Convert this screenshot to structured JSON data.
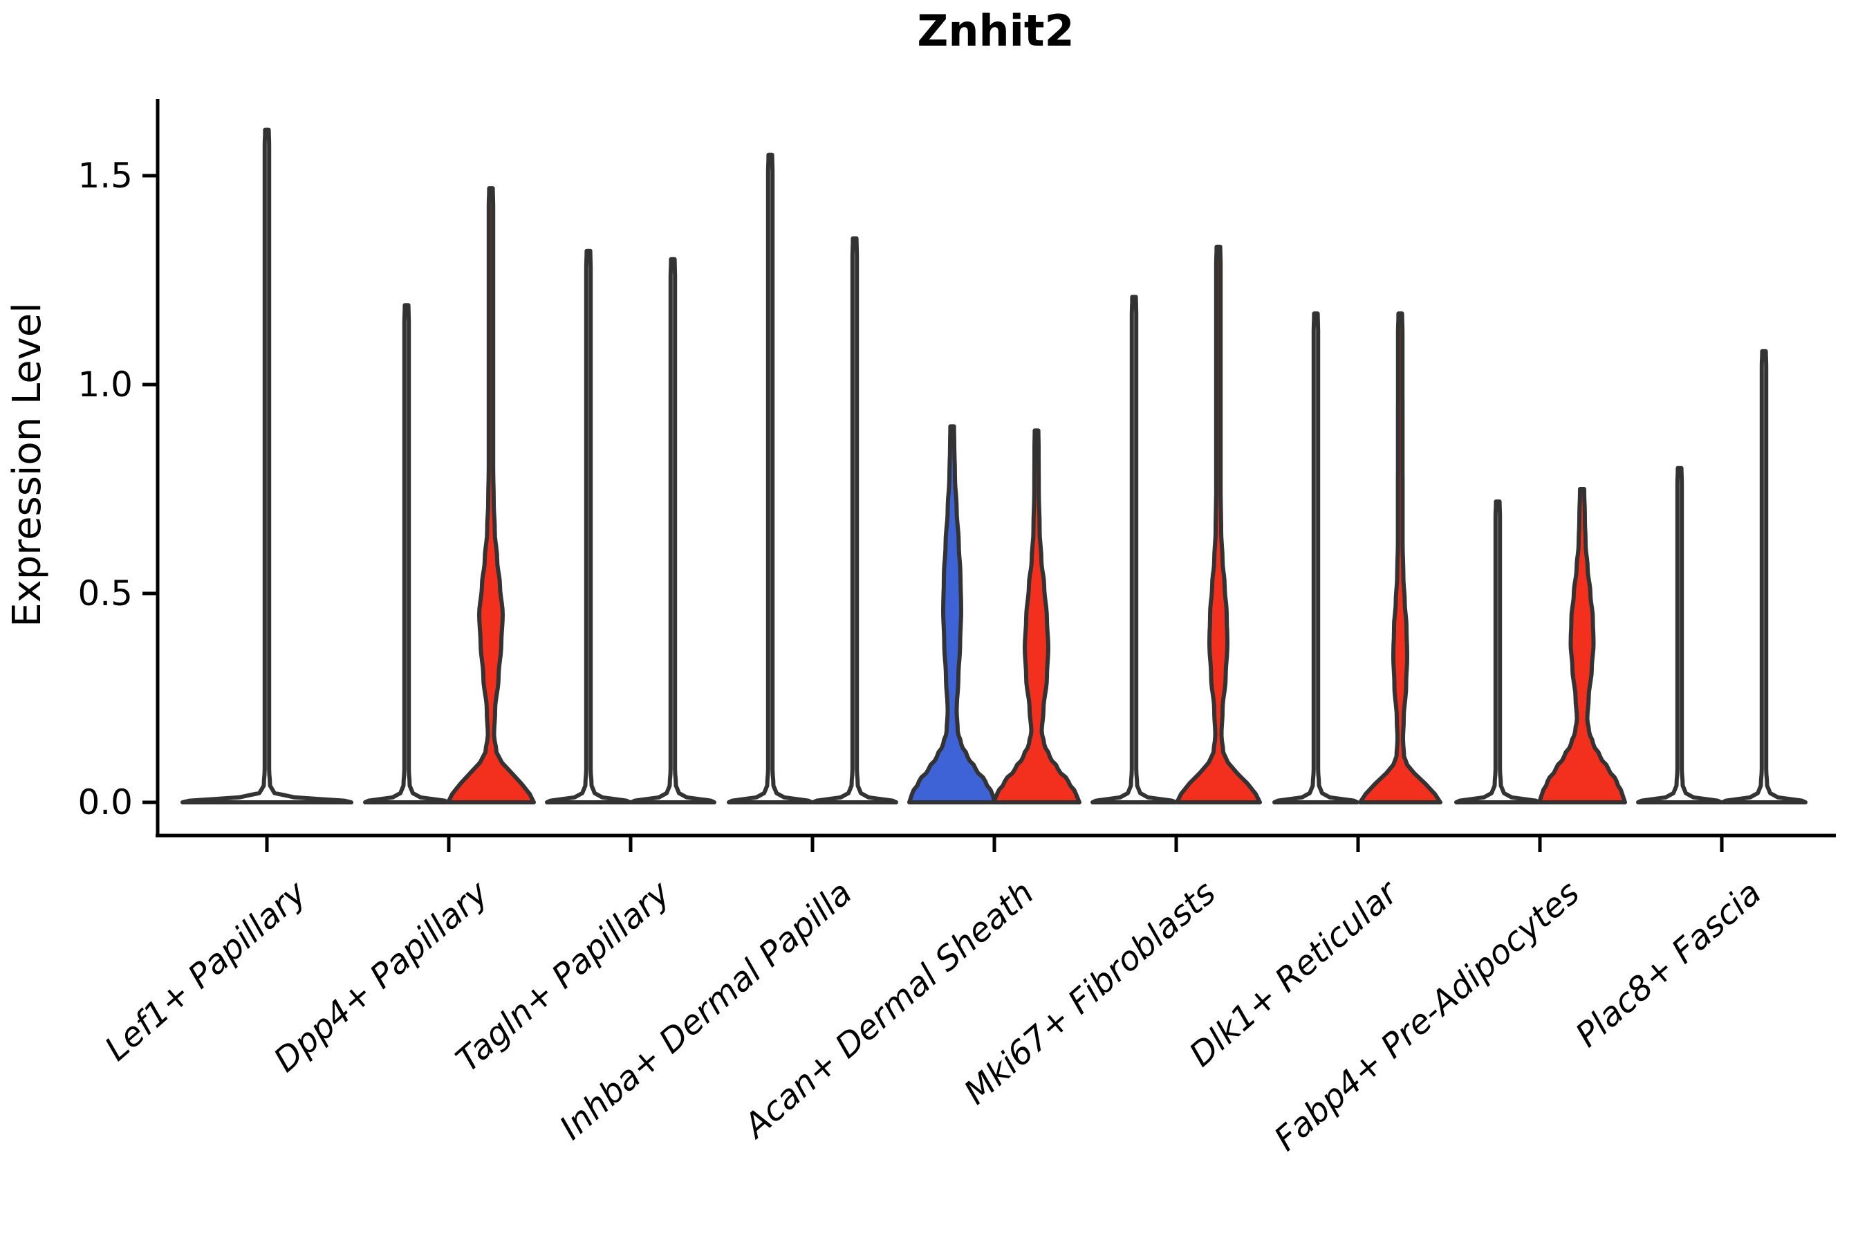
{
  "title": "Znhit2",
  "y_axis": {
    "label": "Expression Level",
    "tick_labels": [
      "0.0",
      "0.5",
      "1.0",
      "1.5"
    ],
    "tick_values": [
      0.0,
      0.5,
      1.0,
      1.5
    ]
  },
  "colors": {
    "red": "#F3301E",
    "blue": "#3E63D6",
    "white": "#FFFFFF",
    "outline": "#333333",
    "axis": "#000000",
    "background": "#FFFFFF"
  },
  "chart_data": {
    "type": "violin",
    "title": "Znhit2",
    "ylabel": "Expression Level",
    "ylim": [
      -0.09,
      1.68
    ],
    "grid": false,
    "legend": "none",
    "categories": [
      "Lef1+ Papillary",
      "Dpp4+ Papillary",
      "Tagln+ Papillary",
      "Inhba+ Dermal Papilla",
      "Acan+ Dermal Sheath",
      "Mki67+ Fibroblasts",
      "Dlk1+ Reticular",
      "Fabp4+ Pre-Adipocytes",
      "Plac8+ Fascia"
    ],
    "violins": [
      {
        "category_index": 0,
        "slot": "center",
        "fill": "white",
        "max_expression": 1.61,
        "profile": [
          [
            0,
            122
          ],
          [
            0.004,
            112
          ],
          [
            0.012,
            40
          ],
          [
            0.022,
            11
          ],
          [
            0.04,
            4.5
          ],
          [
            0.08,
            3.2
          ],
          [
            1.57,
            3.2
          ],
          [
            1.61,
            2.6
          ]
        ]
      },
      {
        "category_index": 1,
        "slot": "left",
        "fill": "white",
        "max_expression": 1.19,
        "profile": [
          [
            0,
            60
          ],
          [
            0.004,
            55
          ],
          [
            0.012,
            20
          ],
          [
            0.022,
            9
          ],
          [
            0.04,
            4.5
          ],
          [
            0.08,
            3.2
          ],
          [
            1.15,
            3.2
          ],
          [
            1.19,
            2.6
          ]
        ]
      },
      {
        "category_index": 1,
        "slot": "right",
        "fill": "red",
        "max_expression": 1.47,
        "profile": [
          [
            0,
            62
          ],
          [
            0.02,
            56
          ],
          [
            0.045,
            44
          ],
          [
            0.07,
            30
          ],
          [
            0.095,
            16
          ],
          [
            0.12,
            8
          ],
          [
            0.16,
            4.5
          ],
          [
            0.22,
            6
          ],
          [
            0.3,
            11
          ],
          [
            0.38,
            15
          ],
          [
            0.45,
            17
          ],
          [
            0.52,
            13
          ],
          [
            0.58,
            9
          ],
          [
            0.65,
            5.5
          ],
          [
            0.72,
            4
          ],
          [
            0.8,
            3.2
          ],
          [
            1.43,
            3.2
          ],
          [
            1.47,
            2.6
          ]
        ]
      },
      {
        "category_index": 2,
        "slot": "left",
        "fill": "white",
        "max_expression": 1.32,
        "profile": [
          [
            0,
            60
          ],
          [
            0.004,
            55
          ],
          [
            0.012,
            20
          ],
          [
            0.022,
            9
          ],
          [
            0.04,
            4.5
          ],
          [
            0.08,
            3.2
          ],
          [
            1.28,
            3.2
          ],
          [
            1.32,
            2.6
          ]
        ]
      },
      {
        "category_index": 2,
        "slot": "right",
        "fill": "white",
        "max_expression": 1.3,
        "profile": [
          [
            0,
            60
          ],
          [
            0.004,
            55
          ],
          [
            0.012,
            20
          ],
          [
            0.022,
            9
          ],
          [
            0.04,
            4.5
          ],
          [
            0.08,
            3.2
          ],
          [
            1.26,
            3.2
          ],
          [
            1.3,
            2.6
          ]
        ]
      },
      {
        "category_index": 3,
        "slot": "left",
        "fill": "white",
        "max_expression": 1.55,
        "profile": [
          [
            0,
            60
          ],
          [
            0.004,
            55
          ],
          [
            0.012,
            20
          ],
          [
            0.022,
            9
          ],
          [
            0.04,
            4.5
          ],
          [
            0.08,
            3.2
          ],
          [
            1.51,
            3.2
          ],
          [
            1.55,
            2.6
          ]
        ]
      },
      {
        "category_index": 3,
        "slot": "right",
        "fill": "white",
        "max_expression": 1.35,
        "profile": [
          [
            0,
            60
          ],
          [
            0.004,
            55
          ],
          [
            0.012,
            20
          ],
          [
            0.022,
            9
          ],
          [
            0.04,
            4.5
          ],
          [
            0.08,
            3.2
          ],
          [
            1.31,
            3.2
          ],
          [
            1.35,
            2.6
          ]
        ]
      },
      {
        "category_index": 4,
        "slot": "left",
        "fill": "blue",
        "max_expression": 0.9,
        "profile": [
          [
            0,
            62
          ],
          [
            0.02,
            58
          ],
          [
            0.05,
            48
          ],
          [
            0.08,
            34
          ],
          [
            0.11,
            22
          ],
          [
            0.14,
            13
          ],
          [
            0.17,
            8
          ],
          [
            0.22,
            6.5
          ],
          [
            0.3,
            9
          ],
          [
            0.38,
            11.5
          ],
          [
            0.46,
            13
          ],
          [
            0.54,
            12
          ],
          [
            0.62,
            9.5
          ],
          [
            0.7,
            6.5
          ],
          [
            0.78,
            4
          ],
          [
            0.86,
            3
          ],
          [
            0.9,
            2.6
          ]
        ]
      },
      {
        "category_index": 4,
        "slot": "right",
        "fill": "red",
        "max_expression": 0.89,
        "profile": [
          [
            0,
            62
          ],
          [
            0.02,
            57
          ],
          [
            0.05,
            46
          ],
          [
            0.08,
            31
          ],
          [
            0.11,
            19
          ],
          [
            0.14,
            11
          ],
          [
            0.17,
            7.5
          ],
          [
            0.22,
            10
          ],
          [
            0.3,
            15
          ],
          [
            0.37,
            17
          ],
          [
            0.44,
            15
          ],
          [
            0.52,
            11
          ],
          [
            0.58,
            7
          ],
          [
            0.65,
            4.5
          ],
          [
            0.75,
            3.2
          ],
          [
            0.85,
            3
          ],
          [
            0.89,
            2.6
          ]
        ]
      },
      {
        "category_index": 5,
        "slot": "left",
        "fill": "white",
        "max_expression": 1.21,
        "profile": [
          [
            0,
            60
          ],
          [
            0.004,
            55
          ],
          [
            0.012,
            20
          ],
          [
            0.022,
            9
          ],
          [
            0.04,
            4.5
          ],
          [
            0.08,
            3.2
          ],
          [
            1.17,
            3.2
          ],
          [
            1.21,
            2.6
          ]
        ]
      },
      {
        "category_index": 5,
        "slot": "right",
        "fill": "red",
        "max_expression": 1.33,
        "profile": [
          [
            0,
            60
          ],
          [
            0.02,
            54
          ],
          [
            0.045,
            42
          ],
          [
            0.07,
            27
          ],
          [
            0.095,
            14
          ],
          [
            0.12,
            7
          ],
          [
            0.16,
            4.5
          ],
          [
            0.22,
            6
          ],
          [
            0.3,
            10.5
          ],
          [
            0.38,
            13
          ],
          [
            0.45,
            12
          ],
          [
            0.52,
            9
          ],
          [
            0.58,
            6
          ],
          [
            0.65,
            4
          ],
          [
            0.75,
            3.2
          ],
          [
            1.29,
            3.2
          ],
          [
            1.33,
            2.6
          ]
        ]
      },
      {
        "category_index": 6,
        "slot": "left",
        "fill": "white",
        "max_expression": 1.17,
        "profile": [
          [
            0,
            60
          ],
          [
            0.004,
            55
          ],
          [
            0.012,
            20
          ],
          [
            0.022,
            9
          ],
          [
            0.04,
            4.5
          ],
          [
            0.08,
            3.2
          ],
          [
            1.13,
            3.2
          ],
          [
            1.17,
            2.6
          ]
        ]
      },
      {
        "category_index": 6,
        "slot": "right",
        "fill": "red",
        "max_expression": 1.17,
        "profile": [
          [
            0,
            58
          ],
          [
            0.02,
            50
          ],
          [
            0.045,
            36
          ],
          [
            0.07,
            20
          ],
          [
            0.09,
            10
          ],
          [
            0.11,
            5.5
          ],
          [
            0.15,
            4
          ],
          [
            0.2,
            5
          ],
          [
            0.28,
            8.5
          ],
          [
            0.35,
            10
          ],
          [
            0.42,
            9
          ],
          [
            0.48,
            6.5
          ],
          [
            0.54,
            4.5
          ],
          [
            0.62,
            3.4
          ],
          [
            1.13,
            3.2
          ],
          [
            1.17,
            2.6
          ]
        ]
      },
      {
        "category_index": 7,
        "slot": "left",
        "fill": "white",
        "max_expression": 0.72,
        "profile": [
          [
            0,
            60
          ],
          [
            0.004,
            55
          ],
          [
            0.012,
            20
          ],
          [
            0.022,
            9
          ],
          [
            0.04,
            4.5
          ],
          [
            0.08,
            3.2
          ],
          [
            0.68,
            3.2
          ],
          [
            0.72,
            2.6
          ]
        ]
      },
      {
        "category_index": 7,
        "slot": "right",
        "fill": "red",
        "max_expression": 0.75,
        "profile": [
          [
            0,
            62
          ],
          [
            0.02,
            58
          ],
          [
            0.05,
            50
          ],
          [
            0.08,
            38
          ],
          [
            0.11,
            26
          ],
          [
            0.14,
            16
          ],
          [
            0.17,
            10
          ],
          [
            0.2,
            7.5
          ],
          [
            0.25,
            9.5
          ],
          [
            0.32,
            14
          ],
          [
            0.38,
            16.5
          ],
          [
            0.44,
            15.5
          ],
          [
            0.5,
            12
          ],
          [
            0.56,
            8
          ],
          [
            0.62,
            5
          ],
          [
            0.68,
            4
          ],
          [
            0.75,
            3
          ]
        ]
      },
      {
        "category_index": 8,
        "slot": "left",
        "fill": "white",
        "max_expression": 0.8,
        "profile": [
          [
            0,
            60
          ],
          [
            0.004,
            55
          ],
          [
            0.012,
            20
          ],
          [
            0.022,
            9
          ],
          [
            0.04,
            4.5
          ],
          [
            0.08,
            3.2
          ],
          [
            0.76,
            3.2
          ],
          [
            0.8,
            2.6
          ]
        ]
      },
      {
        "category_index": 8,
        "slot": "right",
        "fill": "white",
        "max_expression": 1.08,
        "profile": [
          [
            0,
            60
          ],
          [
            0.004,
            55
          ],
          [
            0.012,
            20
          ],
          [
            0.022,
            9
          ],
          [
            0.04,
            4.5
          ],
          [
            0.08,
            3.2
          ],
          [
            1.04,
            3.2
          ],
          [
            1.08,
            2.6
          ]
        ]
      }
    ]
  }
}
